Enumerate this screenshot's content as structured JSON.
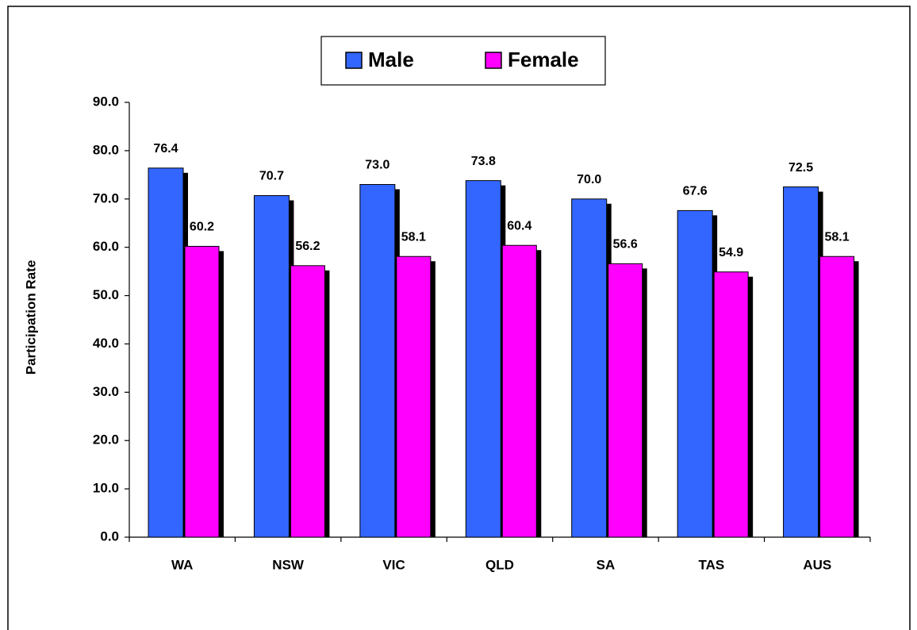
{
  "chart_data": {
    "type": "bar",
    "y_label": "Participation Rate",
    "categories": [
      "WA",
      "NSW",
      "VIC",
      "QLD",
      "SA",
      "TAS",
      "AUS"
    ],
    "series": [
      {
        "name": "Male",
        "color": "#3366ff",
        "values": [
          76.4,
          70.7,
          73.0,
          73.8,
          70.0,
          67.6,
          72.5
        ],
        "value_labels": [
          "76.4",
          "70.7",
          "73.0",
          "73.8",
          "70.0",
          "67.6",
          "72.5"
        ]
      },
      {
        "name": "Female",
        "color": "#ff00ff",
        "values": [
          60.2,
          56.2,
          58.1,
          60.4,
          56.6,
          54.9,
          58.1
        ],
        "value_labels": [
          "60.2",
          "56.2",
          "58.1",
          "60.4",
          "56.6",
          "54.9",
          "58.1"
        ]
      }
    ],
    "ylim": [
      0,
      90
    ],
    "yticks": [
      {
        "value": 0,
        "label": "0.0"
      },
      {
        "value": 10,
        "label": "10.0"
      },
      {
        "value": 20,
        "label": "20.0"
      },
      {
        "value": 30,
        "label": "30.0"
      },
      {
        "value": 40,
        "label": "40.0"
      },
      {
        "value": 50,
        "label": "50.0"
      },
      {
        "value": 60,
        "label": "60.0"
      },
      {
        "value": 70,
        "label": "70.0"
      },
      {
        "value": 80,
        "label": "80.0"
      },
      {
        "value": 90,
        "label": "90.0"
      }
    ],
    "legend": "top",
    "grid": false,
    "shadow": true
  }
}
